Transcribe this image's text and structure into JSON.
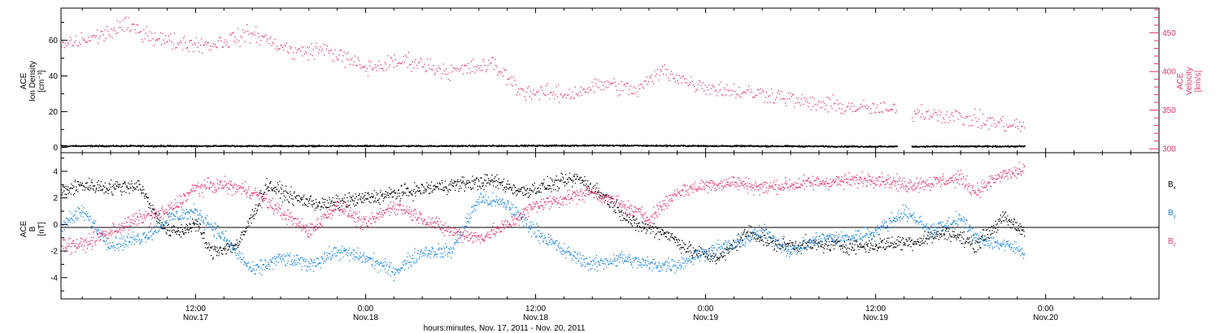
{
  "figure": {
    "x_title": "hours:minutes, Nov. 17, 2011 - Nov. 20, 2011",
    "x_ticks": [
      {
        "t": "12:00",
        "d": "Nov.17",
        "hour": 12
      },
      {
        "t": "0:00",
        "d": "Nov.18",
        "hour": 24
      },
      {
        "t": "12:00",
        "d": "Nov.18",
        "hour": 36
      },
      {
        "t": "0:00",
        "d": "Nov.19",
        "hour": 48
      },
      {
        "t": "12:00",
        "d": "Nov.19",
        "hour": 60
      },
      {
        "t": "0:00",
        "d": "Nov.20",
        "hour": 72
      }
    ],
    "x_range_hours": [
      2.5,
      80.0
    ],
    "data_end_hour": 70.5
  },
  "colors": {
    "black": "#000000",
    "pink": "#e8336a",
    "blue": "#1a87e6"
  },
  "chart_data": [
    {
      "type": "scatter",
      "title": "",
      "ylabel_left": [
        "ACE",
        "Ion Density",
        "[cm⁻³]"
      ],
      "ylabel_right": [
        "ACE",
        "Velocity",
        "[km/s]"
      ],
      "ylim_left": [
        -3,
        78
      ],
      "ylim_right": [
        295,
        482
      ],
      "yticks_left": [
        0,
        20,
        40,
        60
      ],
      "yticks_right": [
        300,
        350,
        400,
        450
      ],
      "series": [
        {
          "name": "Ion Density",
          "axis": "left",
          "color": "#000000",
          "points": [
            [
              2.5,
              1
            ],
            [
              10,
              1
            ],
            [
              20,
              1
            ],
            [
              30,
              1
            ],
            [
              40,
              1.3
            ],
            [
              50,
              1
            ],
            [
              60,
              0.7
            ],
            [
              70,
              0.8
            ]
          ],
          "gaps": [
            [
              61.5,
              62.5
            ]
          ]
        },
        {
          "name": "Velocity",
          "axis": "right",
          "color": "#e8336a",
          "points": [
            [
              2.5,
              435
            ],
            [
              5,
              445
            ],
            [
              7,
              460
            ],
            [
              10,
              440
            ],
            [
              13,
              435
            ],
            [
              16,
              450
            ],
            [
              19,
              425
            ],
            [
              21,
              430
            ],
            [
              24,
              405
            ],
            [
              27,
              415
            ],
            [
              30,
              400
            ],
            [
              33,
              410
            ],
            [
              35,
              375
            ],
            [
              38,
              370
            ],
            [
              41,
              385
            ],
            [
              43,
              375
            ],
            [
              45,
              402
            ],
            [
              47,
              385
            ],
            [
              50,
              375
            ],
            [
              53,
              370
            ],
            [
              55,
              360
            ],
            [
              58,
              355
            ],
            [
              61,
              350
            ],
            [
              64,
              347
            ],
            [
              67,
              338
            ],
            [
              70,
              330
            ]
          ],
          "gaps": [
            [
              61.5,
              62.5
            ]
          ]
        }
      ]
    },
    {
      "type": "scatter",
      "title": "",
      "ylabel": [
        "ACE",
        "B",
        "[nT]"
      ],
      "ylim": [
        -5.6,
        5.4
      ],
      "yticks": [
        -4,
        -2,
        0,
        2,
        4
      ],
      "zero_line": true,
      "series": [
        {
          "name": "Bx",
          "legend": "B",
          "sub": "x",
          "color": "#000000",
          "points": [
            [
              2.5,
              2.5
            ],
            [
              4,
              3
            ],
            [
              6,
              2.8
            ],
            [
              8,
              3
            ],
            [
              9,
              1
            ],
            [
              10,
              -0.5
            ],
            [
              11,
              -0.5
            ],
            [
              12,
              0.2
            ],
            [
              13,
              -2
            ],
            [
              15,
              -1.5
            ],
            [
              17,
              3
            ],
            [
              19,
              2
            ],
            [
              21,
              1.5
            ],
            [
              24,
              2
            ],
            [
              27,
              2.5
            ],
            [
              30,
              3
            ],
            [
              33,
              3.3
            ],
            [
              35,
              2.5
            ],
            [
              37,
              3
            ],
            [
              39,
              3.5
            ],
            [
              41,
              2
            ],
            [
              43,
              0
            ],
            [
              45,
              -0.5
            ],
            [
              47,
              -2
            ],
            [
              49,
              -2.5
            ],
            [
              51,
              -0.5
            ],
            [
              53,
              -1.5
            ],
            [
              55,
              -1.5
            ],
            [
              57,
              -1.5
            ],
            [
              59,
              -1.6
            ],
            [
              61,
              -1.4
            ],
            [
              63,
              -1.2
            ],
            [
              65,
              -0.5
            ],
            [
              67,
              -1.5
            ],
            [
              69,
              0.5
            ],
            [
              70.5,
              -0.5
            ]
          ]
        },
        {
          "name": "By",
          "legend": "B",
          "sub": "y",
          "color": "#1a87e6",
          "points": [
            [
              2.5,
              0
            ],
            [
              4,
              1
            ],
            [
              6,
              -1.5
            ],
            [
              8,
              -1
            ],
            [
              9,
              -0.5
            ],
            [
              10,
              0.5
            ],
            [
              12,
              1
            ],
            [
              14,
              -1
            ],
            [
              16,
              -3.5
            ],
            [
              18,
              -2.5
            ],
            [
              20,
              -3
            ],
            [
              22,
              -2
            ],
            [
              24,
              -2.5
            ],
            [
              26,
              -3.5
            ],
            [
              28,
              -2
            ],
            [
              30,
              -2
            ],
            [
              32,
              2
            ],
            [
              34,
              1.5
            ],
            [
              36,
              -0.5
            ],
            [
              38,
              -2
            ],
            [
              40,
              -3
            ],
            [
              42,
              -2.5
            ],
            [
              44,
              -3
            ],
            [
              46,
              -3
            ],
            [
              48,
              -2
            ],
            [
              50,
              -1.5
            ],
            [
              52,
              -0.5
            ],
            [
              54,
              -2
            ],
            [
              56,
              -1
            ],
            [
              58,
              -1
            ],
            [
              60,
              -0.5
            ],
            [
              62,
              1
            ],
            [
              64,
              -0.5
            ],
            [
              66,
              0.5
            ],
            [
              67,
              -1
            ],
            [
              69,
              -1.5
            ],
            [
              70.5,
              -2
            ]
          ]
        },
        {
          "name": "Bz",
          "legend": "B",
          "sub": "z",
          "color": "#e8336a",
          "points": [
            [
              2.5,
              -1.5
            ],
            [
              4,
              -1.5
            ],
            [
              6,
              -0.5
            ],
            [
              8,
              0.5
            ],
            [
              10,
              1
            ],
            [
              12,
              2.8
            ],
            [
              14,
              3
            ],
            [
              16,
              2.5
            ],
            [
              18,
              1
            ],
            [
              20,
              -0.5
            ],
            [
              22,
              1.5
            ],
            [
              24,
              0
            ],
            [
              26,
              1.5
            ],
            [
              28,
              0.5
            ],
            [
              30,
              -0.5
            ],
            [
              32,
              -1
            ],
            [
              34,
              0
            ],
            [
              36,
              1.5
            ],
            [
              38,
              2
            ],
            [
              40,
              2.5
            ],
            [
              42,
              1.5
            ],
            [
              44,
              0.5
            ],
            [
              46,
              2.5
            ],
            [
              48,
              3
            ],
            [
              50,
              3.2
            ],
            [
              52,
              2.8
            ],
            [
              54,
              3
            ],
            [
              56,
              3.2
            ],
            [
              58,
              3.3
            ],
            [
              60,
              3.5
            ],
            [
              62,
              3
            ],
            [
              64,
              3.2
            ],
            [
              66,
              3.5
            ],
            [
              67,
              2.5
            ],
            [
              69,
              3.8
            ],
            [
              70.5,
              4
            ]
          ]
        }
      ]
    }
  ]
}
